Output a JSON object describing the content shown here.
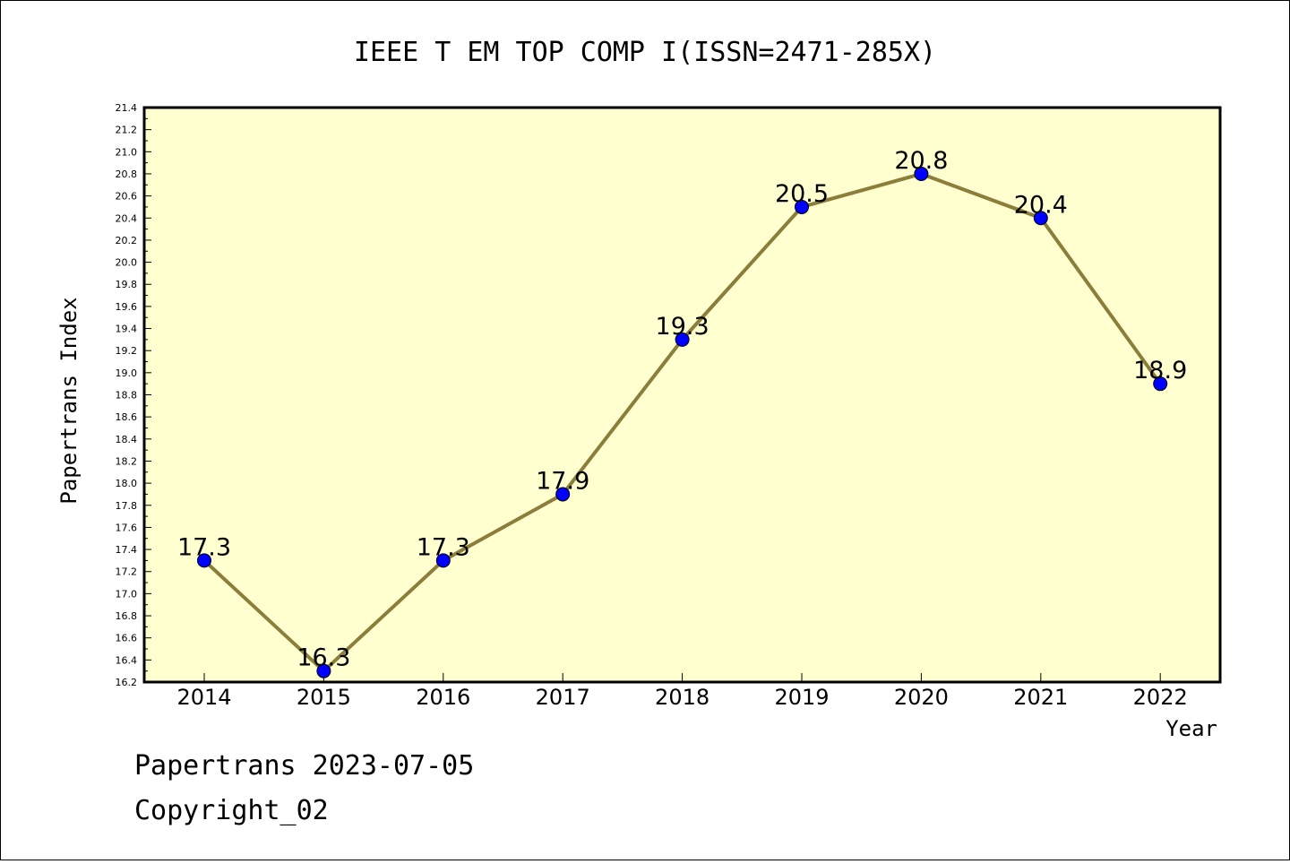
{
  "title": "IEEE T EM TOP COMP I(ISSN=2471-285X)",
  "footer": {
    "line1": "Papertrans 2023-07-05",
    "line2": "Copyright_02"
  },
  "colors": {
    "plot_background": "#ffffd0",
    "line": "#8b7d3a",
    "marker": "#0000ff",
    "axes": "#000000"
  },
  "chart_data": {
    "type": "line",
    "title": "IEEE T EM TOP COMP I(ISSN=2471-285X)",
    "xlabel": "Year",
    "ylabel": "Papertrans Index",
    "categories": [
      "2014",
      "2015",
      "2016",
      "2017",
      "2018",
      "2019",
      "2020",
      "2021",
      "2022"
    ],
    "series": [
      {
        "values": [
          17.3,
          16.3,
          17.3,
          17.9,
          19.3,
          20.5,
          20.8,
          20.4,
          18.9
        ]
      }
    ],
    "data_labels": [
      "17.3",
      "16.3",
      "17.3",
      "17.9",
      "19.3",
      "20.5",
      "20.8",
      "20.4",
      "18.9"
    ],
    "ylim": [
      16.2,
      21.4
    ],
    "yticks": [
      "16.2",
      "16.4",
      "16.6",
      "16.8",
      "17.0",
      "17.2",
      "17.4",
      "17.6",
      "17.8",
      "18.0",
      "18.2",
      "18.4",
      "18.6",
      "18.8",
      "19.0",
      "19.2",
      "19.4",
      "19.6",
      "19.8",
      "20.0",
      "20.2",
      "20.4",
      "20.6",
      "20.8",
      "21.0",
      "21.2",
      "21.4"
    ],
    "grid": false,
    "legend": "none"
  }
}
